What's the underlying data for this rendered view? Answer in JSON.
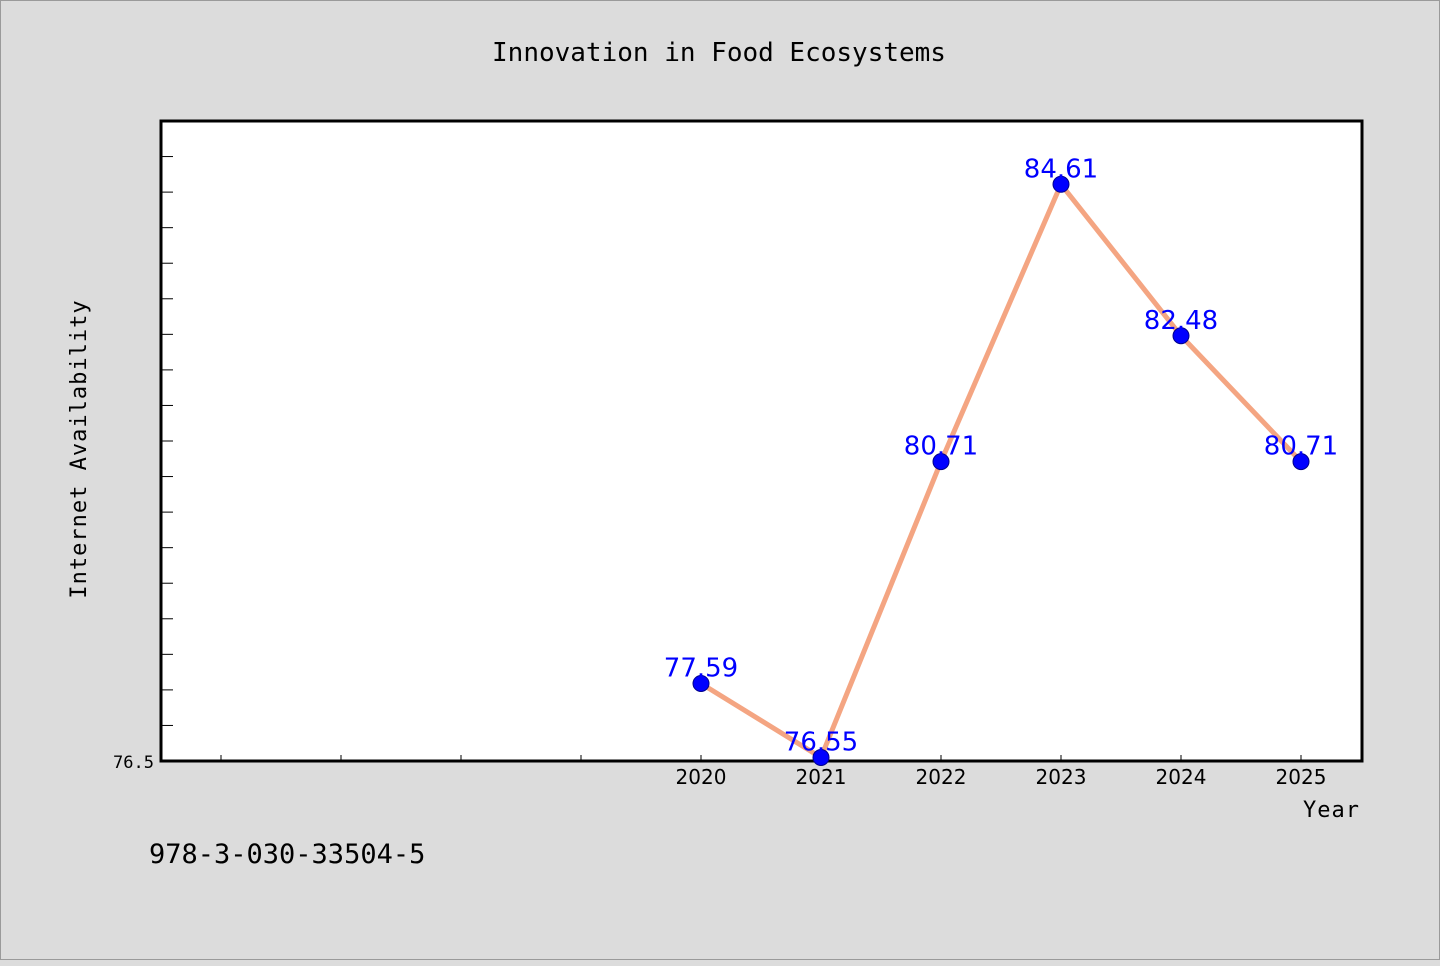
{
  "chart_data": {
    "type": "line",
    "title": "Innovation in Food Ecosystems",
    "xlabel": "Year",
    "ylabel": "Internet Availability",
    "categories": [
      "2020",
      "2021",
      "2022",
      "2023",
      "2024",
      "2025"
    ],
    "series": [
      {
        "values": [
          77.59,
          76.55,
          80.71,
          84.61,
          82.48,
          80.71
        ],
        "labels": [
          "77.59",
          "76.55",
          "80.71",
          "84.61",
          "82.48",
          "80.71"
        ]
      }
    ],
    "y_tick_label": "76.5",
    "ylim": [
      76.5,
      85.5
    ],
    "grid": false,
    "line_color": "#f4a582",
    "marker_color": "#0000ff",
    "label_color": "#0000ff"
  },
  "footer": {
    "isbn": "978-3-030-33504-5"
  }
}
